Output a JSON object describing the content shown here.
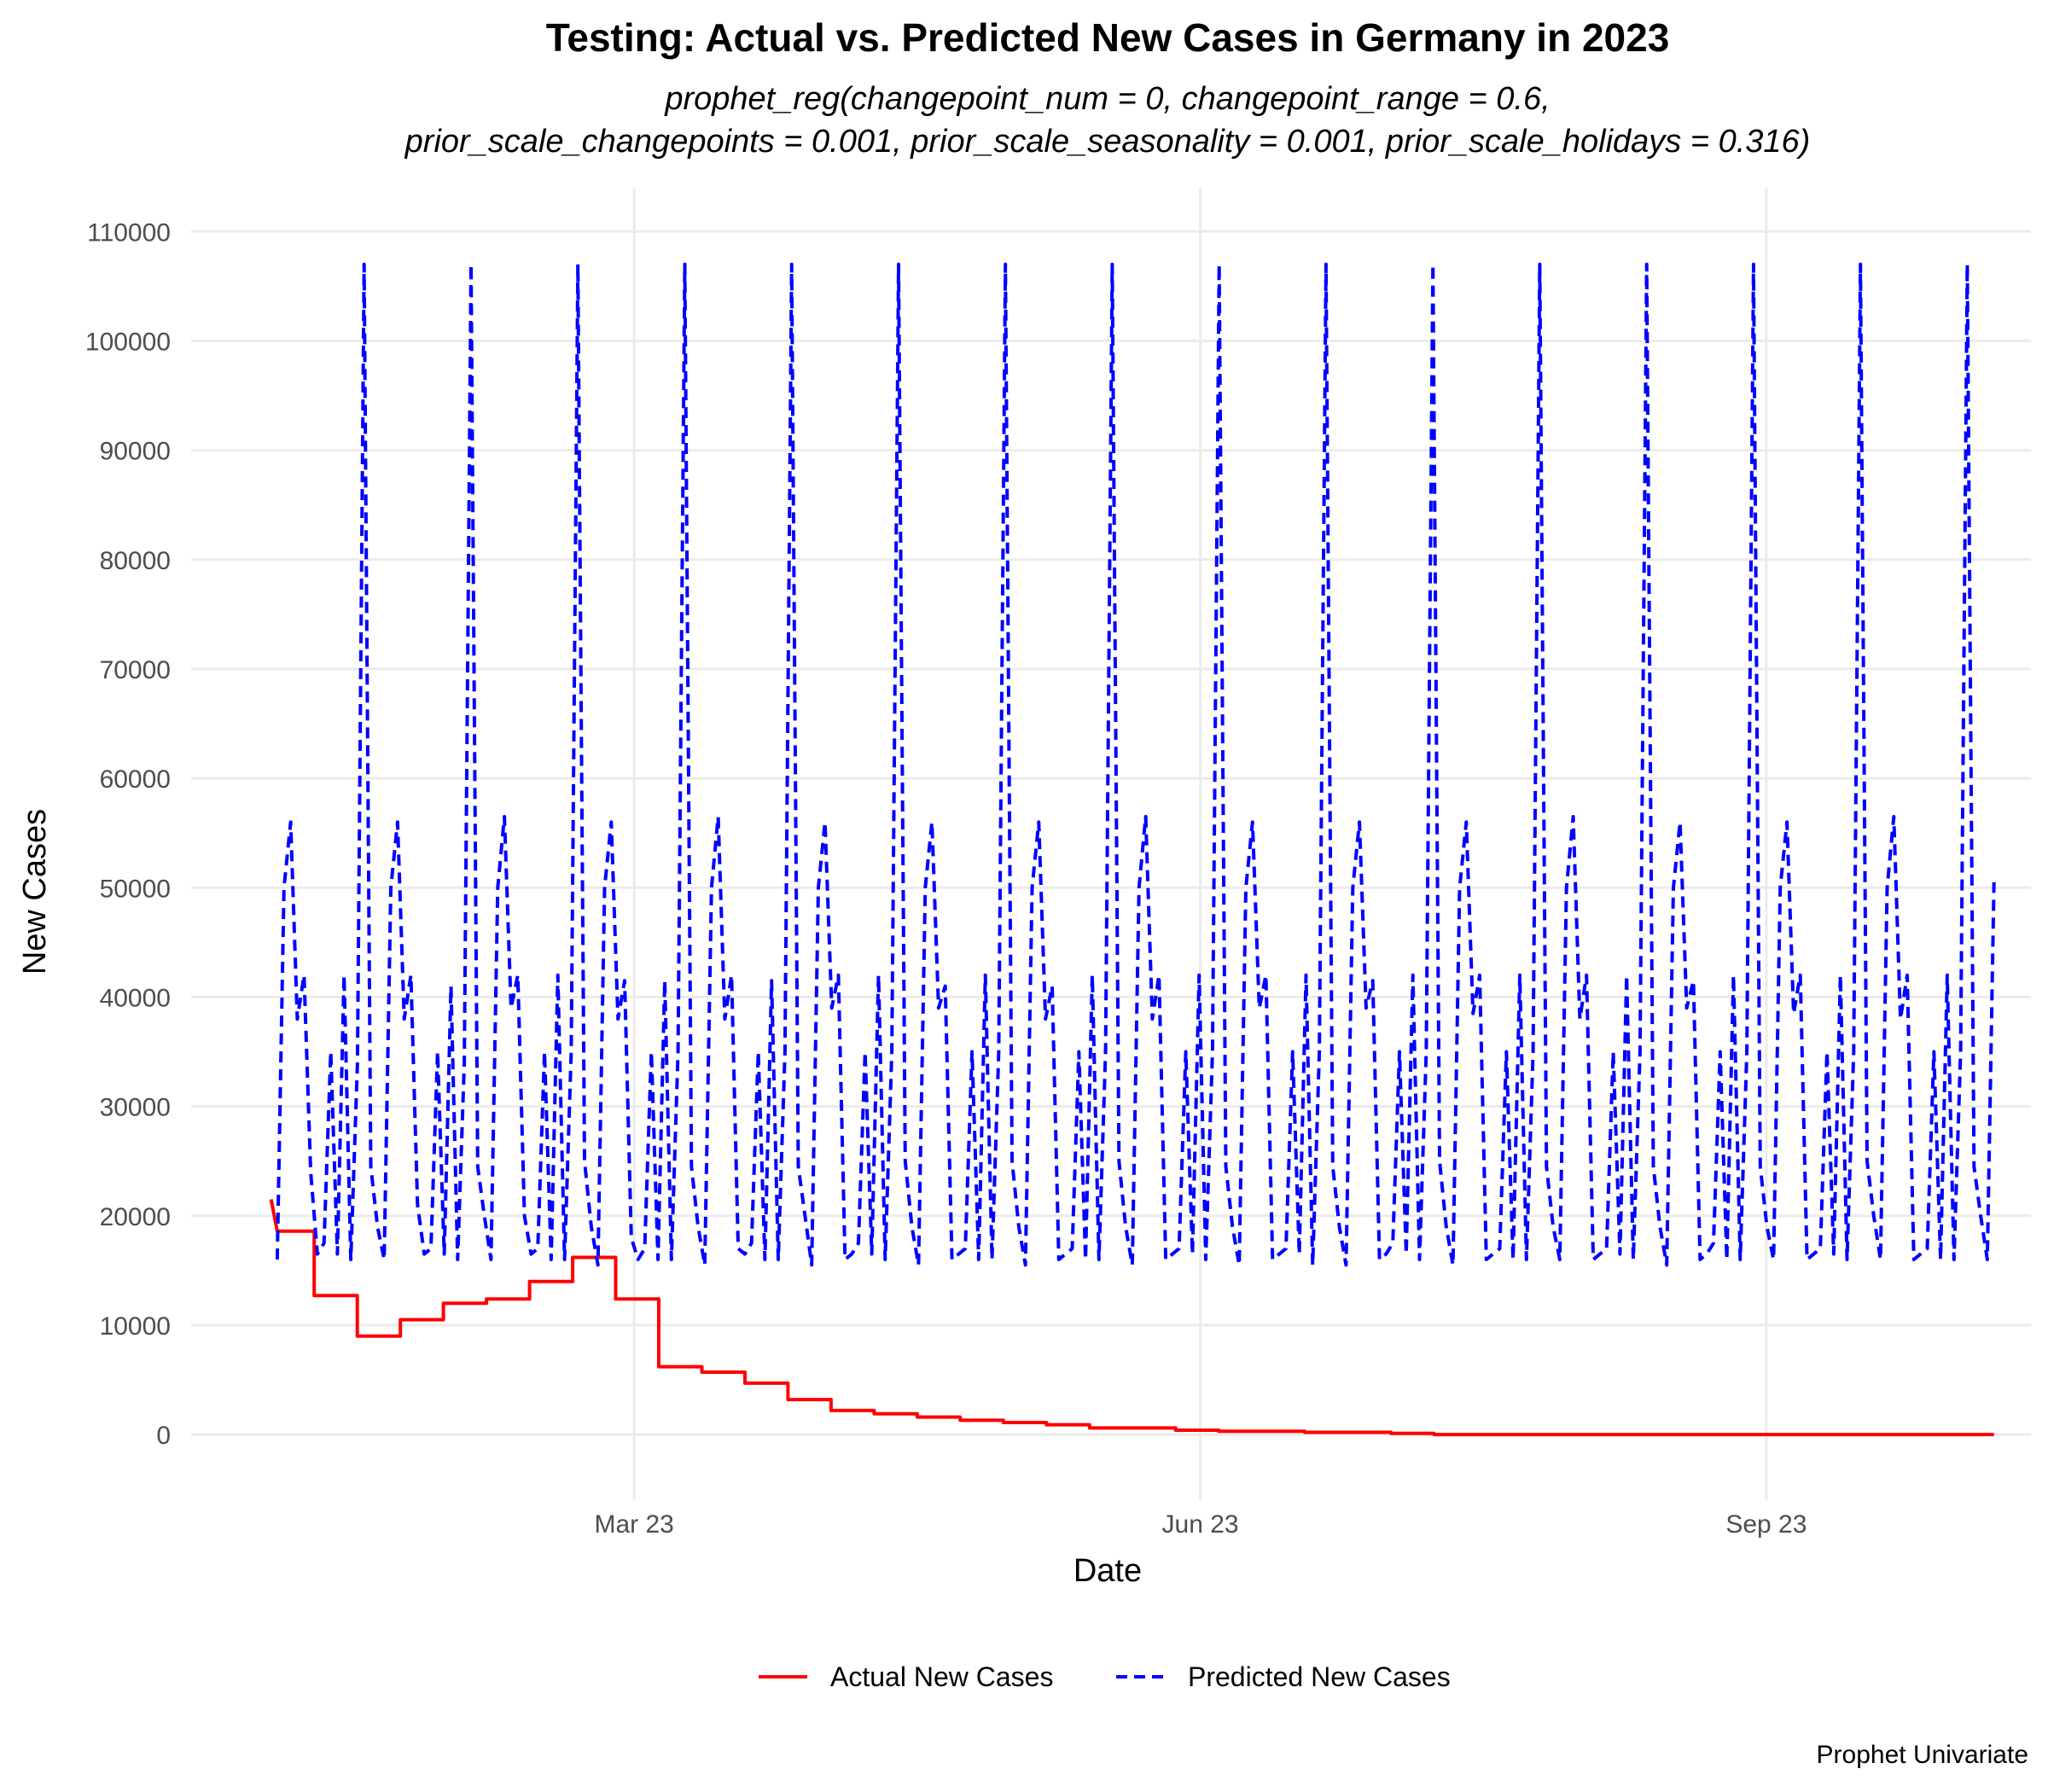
{
  "chart_data": {
    "type": "line",
    "title": "Testing: Actual vs. Predicted New Cases in Germany in 2023",
    "subtitle": [
      "prophet_reg(changepoint_num = 0, changepoint_range = 0.6,",
      "prior_scale_changepoints = 0.001, prior_scale_seasonality = 0.001, prior_scale_holidays = 0.316)"
    ],
    "xlabel": "Date",
    "ylabel": "New Cases",
    "caption": "Prophet Univariate",
    "x_range": [
      "2022-12-19",
      "2023-10-14"
    ],
    "x_ticks": [
      {
        "date": "2023-03-01",
        "label": "Mar 23"
      },
      {
        "date": "2023-06-01",
        "label": "Jun 23"
      },
      {
        "date": "2023-09-01",
        "label": "Sep 23"
      }
    ],
    "ylim": [
      -6000,
      114000
    ],
    "y_ticks": [
      0,
      10000,
      20000,
      30000,
      40000,
      50000,
      60000,
      70000,
      80000,
      90000,
      100000,
      110000
    ],
    "grid": true,
    "legend_position": "bottom",
    "series": [
      {
        "name": "Actual New Cases",
        "color": "#ff0000",
        "line_style": "solid",
        "step_points": [
          [
            "2023-01-01",
            21500
          ],
          [
            "2023-01-02",
            18600
          ],
          [
            "2023-01-08",
            18600
          ],
          [
            "2023-01-08",
            12700
          ],
          [
            "2023-01-15",
            12700
          ],
          [
            "2023-01-15",
            9000
          ],
          [
            "2023-01-22",
            9000
          ],
          [
            "2023-01-22",
            10500
          ],
          [
            "2023-01-29",
            10500
          ],
          [
            "2023-01-29",
            12000
          ],
          [
            "2023-02-05",
            12000
          ],
          [
            "2023-02-05",
            12400
          ],
          [
            "2023-02-12",
            12400
          ],
          [
            "2023-02-12",
            14000
          ],
          [
            "2023-02-19",
            14000
          ],
          [
            "2023-02-19",
            16200
          ],
          [
            "2023-02-26",
            16200
          ],
          [
            "2023-02-26",
            12400
          ],
          [
            "2023-03-05",
            12400
          ],
          [
            "2023-03-05",
            6200
          ],
          [
            "2023-03-12",
            6200
          ],
          [
            "2023-03-12",
            5700
          ],
          [
            "2023-03-19",
            5700
          ],
          [
            "2023-03-19",
            4700
          ],
          [
            "2023-03-26",
            4700
          ],
          [
            "2023-03-26",
            3200
          ],
          [
            "2023-04-02",
            3200
          ],
          [
            "2023-04-02",
            2200
          ],
          [
            "2023-04-09",
            2200
          ],
          [
            "2023-04-09",
            1900
          ],
          [
            "2023-04-16",
            1900
          ],
          [
            "2023-04-16",
            1600
          ],
          [
            "2023-04-23",
            1600
          ],
          [
            "2023-04-23",
            1300
          ],
          [
            "2023-04-30",
            1300
          ],
          [
            "2023-04-30",
            1100
          ],
          [
            "2023-05-07",
            1100
          ],
          [
            "2023-05-07",
            900
          ],
          [
            "2023-05-14",
            900
          ],
          [
            "2023-05-14",
            600
          ],
          [
            "2023-05-28",
            600
          ],
          [
            "2023-05-28",
            400
          ],
          [
            "2023-06-04",
            400
          ],
          [
            "2023-06-04",
            300
          ],
          [
            "2023-06-18",
            300
          ],
          [
            "2023-06-18",
            200
          ],
          [
            "2023-07-02",
            200
          ],
          [
            "2023-07-02",
            100
          ],
          [
            "2023-07-09",
            100
          ],
          [
            "2023-07-09",
            0
          ],
          [
            "2023-10-08",
            0
          ]
        ]
      },
      {
        "name": "Predicted New Cases",
        "color": "#0000ff",
        "line_style": "dashed",
        "start_date": "2023-01-02",
        "end_date": "2023-10-08",
        "weekly_values": [
          16000,
          50000,
          56000,
          38000,
          42000,
          24000,
          16500,
          17500,
          35000,
          16500,
          42000,
          16000,
          34000,
          107000,
          24500,
          19000,
          16000,
          50000,
          56000,
          38000,
          42000,
          21000,
          16500,
          17000,
          35000,
          16500,
          41000,
          16000,
          34000,
          107000,
          24500,
          20000,
          16000,
          50000,
          56500,
          39000,
          42000,
          20000,
          16500,
          17000,
          35000,
          16000,
          42000,
          16000,
          35000,
          107000,
          25000,
          19000,
          15500,
          50000,
          56000,
          38000,
          41500,
          18000,
          16000,
          17000,
          35000,
          16000,
          41500,
          16000,
          35000,
          107000,
          24500,
          19000,
          15500,
          50000,
          56500,
          38000,
          42000,
          17000,
          16500,
          17500,
          35000,
          16000,
          41500,
          16000,
          35000,
          107000,
          24500,
          20000,
          15500,
          50000,
          56000,
          39000,
          42000,
          16000,
          16500,
          17500,
          35000,
          16500,
          42000,
          16000,
          35000,
          107000,
          25000,
          19000,
          15500,
          50000,
          56000,
          39000,
          41000,
          16000,
          16500,
          17000,
          35000,
          16000,
          42000,
          16000,
          35000,
          107000,
          25000,
          19000,
          15500,
          50000,
          56000,
          38000,
          41000,
          16000,
          16500,
          17000,
          35000,
          16000,
          42000,
          16000,
          35000,
          107000,
          25000,
          19000,
          15500,
          50000,
          56500,
          38000,
          42000,
          16000,
          16500,
          17000,
          35000,
          16500,
          42000,
          16000,
          35000,
          107000,
          24500,
          19000,
          15500,
          50000,
          56000,
          39000,
          42000,
          16000,
          16500,
          17000,
          35000,
          16500,
          42000,
          15500,
          35000,
          107000,
          24500,
          19000,
          15500,
          50000,
          56000,
          39000,
          41500,
          16000,
          16500,
          17500,
          35000,
          16500,
          42000,
          16000,
          35000,
          107000,
          25000,
          19000,
          15500,
          50000,
          56000,
          38500,
          42000,
          16000,
          16500,
          17000,
          35000,
          16000,
          42000,
          16000,
          35000,
          107000,
          24500,
          19000,
          16000,
          50000,
          56500,
          38000,
          42000,
          16000,
          16500,
          17000,
          35000,
          16500,
          42000,
          16000,
          35000,
          107000,
          24500,
          19000,
          15500,
          50000,
          56000,
          39000,
          41500,
          16000,
          16500,
          17500,
          35000,
          16000,
          42000,
          16000,
          35000,
          107000,
          24500,
          19000,
          16000,
          50000,
          56000,
          38500,
          42000,
          16000,
          16500,
          17000,
          35000,
          16500,
          42000,
          16000,
          35000,
          107000,
          25000,
          20000,
          16000,
          50000,
          56500,
          38000,
          42000,
          16000,
          16500,
          17000,
          35000,
          16000,
          42000,
          16000,
          35000,
          107000,
          24500,
          20000,
          16000,
          50500
        ]
      }
    ]
  }
}
